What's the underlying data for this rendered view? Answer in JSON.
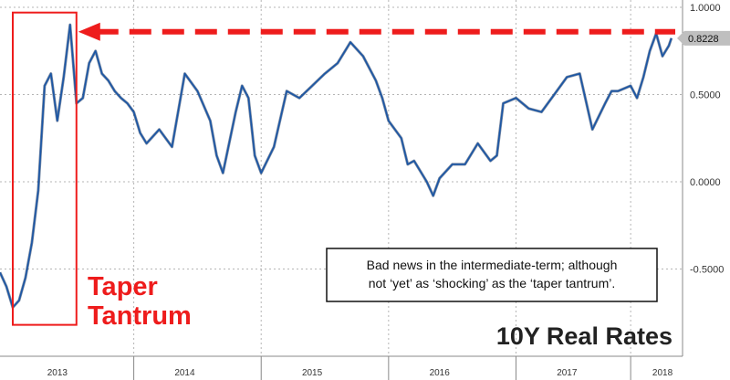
{
  "chart_data": {
    "type": "line",
    "title": "10Y Real Rates",
    "ylim": [
      -1.0,
      1.0
    ],
    "yticks": [
      {
        "value": 1.0,
        "label": "1.0000"
      },
      {
        "value": 0.5,
        "label": "0.5000"
      },
      {
        "value": 0.0,
        "label": "0.0000"
      },
      {
        "value": -0.5,
        "label": "-0.5000"
      }
    ],
    "xlim": [
      2012.85,
      2018.15
    ],
    "xticks": [
      {
        "value": 2013.3,
        "label": "2013"
      },
      {
        "value": 2014.3,
        "label": "2014"
      },
      {
        "value": 2015.3,
        "label": "2015"
      },
      {
        "value": 2016.3,
        "label": "2016"
      },
      {
        "value": 2017.3,
        "label": "2017"
      },
      {
        "value": 2018.05,
        "label": "2018"
      }
    ],
    "xdividers": [
      2013.9,
      2014.9,
      2015.9,
      2016.9,
      2017.8
    ],
    "series": [
      {
        "color": "#1a56a6",
        "x": [
          2012.85,
          2012.9,
          2012.95,
          2013.0,
          2013.05,
          2013.1,
          2013.15,
          2013.2,
          2013.25,
          2013.3,
          2013.35,
          2013.4,
          2013.45,
          2013.5,
          2013.55,
          2013.6,
          2013.65,
          2013.7,
          2013.75,
          2013.8,
          2013.85,
          2013.9,
          2013.95,
          2014.0,
          2014.1,
          2014.2,
          2014.3,
          2014.4,
          2014.5,
          2014.55,
          2014.6,
          2014.7,
          2014.75,
          2014.8,
          2014.85,
          2014.9,
          2015.0,
          2015.1,
          2015.2,
          2015.3,
          2015.4,
          2015.5,
          2015.6,
          2015.7,
          2015.8,
          2015.85,
          2015.9,
          2016.0,
          2016.05,
          2016.1,
          2016.2,
          2016.25,
          2016.3,
          2016.4,
          2016.5,
          2016.6,
          2016.7,
          2016.75,
          2016.8,
          2016.9,
          2017.0,
          2017.1,
          2017.2,
          2017.3,
          2017.4,
          2017.5,
          2017.6,
          2017.65,
          2017.7,
          2017.8,
          2017.85,
          2017.9,
          2017.95,
          2018.0,
          2018.05,
          2018.1,
          2018.12
        ],
        "y": [
          -0.52,
          -0.6,
          -0.72,
          -0.68,
          -0.55,
          -0.35,
          -0.05,
          0.55,
          0.62,
          0.35,
          0.6,
          0.9,
          0.45,
          0.48,
          0.68,
          0.75,
          0.62,
          0.58,
          0.52,
          0.48,
          0.45,
          0.4,
          0.28,
          0.22,
          0.3,
          0.2,
          0.62,
          0.52,
          0.35,
          0.15,
          0.05,
          0.4,
          0.55,
          0.48,
          0.15,
          0.05,
          0.2,
          0.52,
          0.48,
          0.55,
          0.62,
          0.68,
          0.8,
          0.72,
          0.58,
          0.48,
          0.35,
          0.25,
          0.1,
          0.12,
          0.0,
          -0.08,
          0.02,
          0.1,
          0.1,
          0.22,
          0.12,
          0.15,
          0.45,
          0.48,
          0.42,
          0.4,
          0.5,
          0.6,
          0.62,
          0.3,
          0.45,
          0.52,
          0.52,
          0.55,
          0.48,
          0.6,
          0.75,
          0.85,
          0.72,
          0.78,
          0.8228
        ]
      }
    ],
    "last_value_label": "0.8228",
    "last_value": 0.8228,
    "highlight_box": {
      "x_from": 2012.85,
      "x_to": 2013.45,
      "y_from": -0.82,
      "y_to": 0.97
    },
    "highlight_label": [
      "Taper",
      "Tantrum"
    ],
    "reference_level": 0.86,
    "annotation": [
      "Bad news in the intermediate-term; although",
      "not ‘yet’ as ‘shocking’ as the ‘taper tantrum’."
    ],
    "colors": {
      "line": "#1a56a6",
      "accent": "#ee1c1c",
      "grid": "#b5b5b5",
      "badge": "#bfbfbf"
    }
  }
}
